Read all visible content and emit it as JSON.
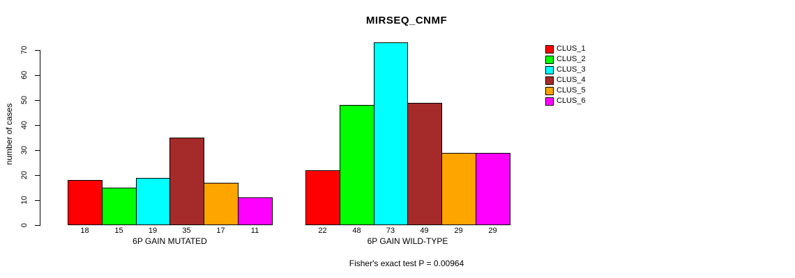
{
  "chart_data": {
    "type": "bar",
    "title": "MIRSEQ_CNMF",
    "ylabel": "number of cases",
    "xlabel": "",
    "ylim": [
      0,
      70
    ],
    "yticks": [
      0,
      10,
      20,
      30,
      40,
      50,
      60,
      70
    ],
    "grid": false,
    "legend_position": "right",
    "series_names": [
      "CLUS_1",
      "CLUS_2",
      "CLUS_3",
      "CLUS_4",
      "CLUS_5",
      "CLUS_6"
    ],
    "colors": [
      "#FF0000",
      "#00FF00",
      "#00FFFF",
      "#A52A2A",
      "#FFA500",
      "#FF00FF"
    ],
    "groups": [
      {
        "label": "6P GAIN MUTATED",
        "values": [
          18,
          15,
          19,
          35,
          17,
          11
        ]
      },
      {
        "label": "6P GAIN WILD-TYPE",
        "values": [
          22,
          48,
          73,
          49,
          29,
          29
        ]
      }
    ]
  },
  "footer": {
    "caption": "Fisher's exact test P = 0.00964"
  }
}
